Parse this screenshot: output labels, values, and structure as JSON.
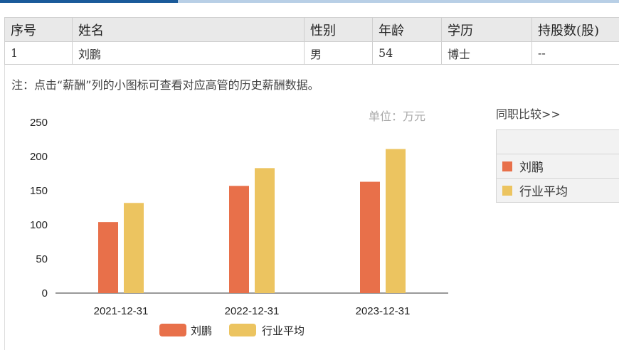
{
  "table": {
    "headers": [
      "序号",
      "姓名",
      "性别",
      "年龄",
      "学历",
      "持股数(股)"
    ],
    "rows": [
      [
        "1",
        "刘鹏",
        "男",
        "54",
        "博士",
        "--"
      ]
    ]
  },
  "note": "注：点击“薪酬”列的小图标可查看对应高管的历史薪酬数据。",
  "compare": {
    "title": "同职比较>>",
    "items": [
      "刘鹏",
      "行业平均"
    ]
  },
  "colors": {
    "series_1": "#e8704a",
    "series_2": "#ecc460"
  },
  "chart_data": {
    "type": "bar",
    "unit_label": "单位：万元",
    "categories": [
      "2021-12-31",
      "2022-12-31",
      "2023-12-31"
    ],
    "series": [
      {
        "name": "刘鹏",
        "values": [
          104,
          157,
          163
        ]
      },
      {
        "name": "行业平均",
        "values": [
          132,
          183,
          211
        ]
      }
    ],
    "ylim": [
      0,
      250
    ],
    "yticks": [
      0,
      50,
      100,
      150,
      200,
      250
    ],
    "legend_position": "bottom",
    "grid": false
  }
}
